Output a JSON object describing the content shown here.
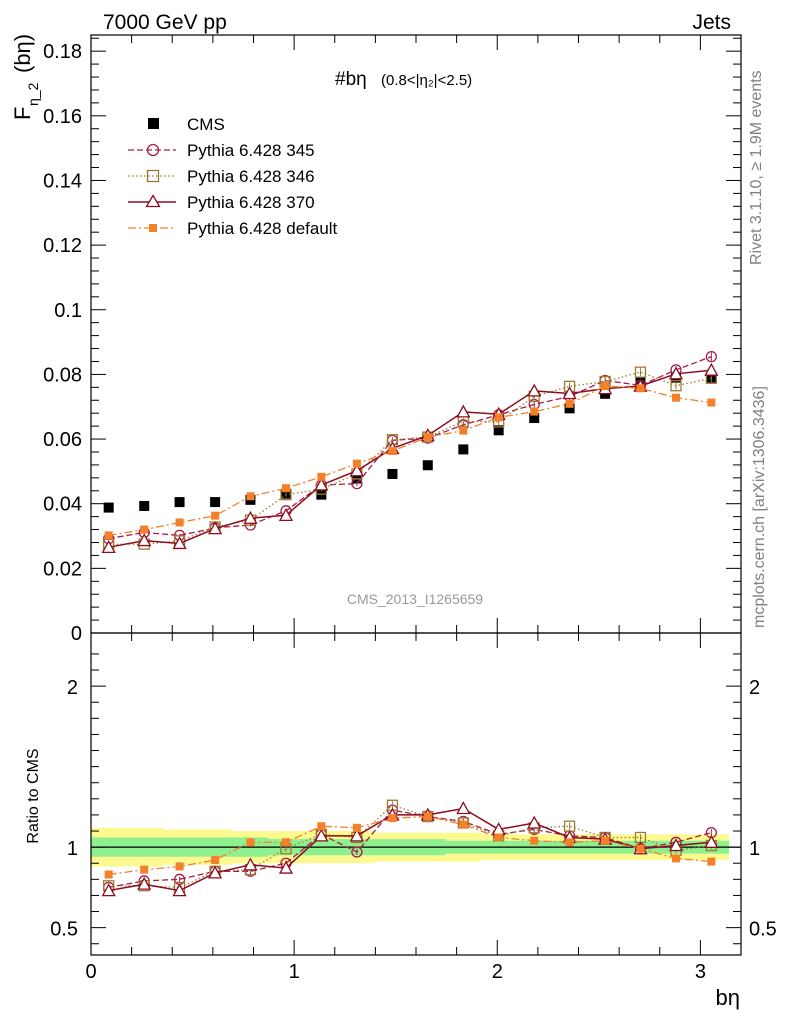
{
  "header": {
    "left": "7000 GeV pp",
    "right": "Jets"
  },
  "side_text": {
    "rivet": "Rivet 3.1.10, ≥ 1.9M events",
    "mcplots": "mcplots.cern.ch [arXiv:1306.3436]"
  },
  "colors": {
    "cms": "#000000",
    "p345": "#a51d4a",
    "p346": "#9b7b2f",
    "p370": "#8b0d1f",
    "pdef": "#f5802a",
    "band_outer": "#fbf98f",
    "band_inner": "#8ff08f"
  },
  "chart_data": {
    "type": "scatter",
    "title": "#bη",
    "title_sub": "(0.8<|η₂|<2.5)",
    "watermark": "CMS_2013_I1265659",
    "xlabel": "bη",
    "ylabel": "Fη_2(bη)",
    "ylabel_main": "F",
    "ylabel_sub": "η_2",
    "ylabel_tail": "(bη)",
    "xlim": [
      0,
      3.2
    ],
    "ylim": [
      0,
      0.185
    ],
    "xticks": [
      0,
      1,
      2,
      3
    ],
    "xtick_labels": [
      "0",
      "1",
      "2",
      "3"
    ],
    "yticks": [
      0,
      0.02,
      0.04,
      0.06,
      0.08,
      0.1,
      0.12,
      0.14,
      0.16,
      0.18
    ],
    "ytick_labels": [
      "0",
      "0.02",
      "0.04",
      "0.06",
      "0.08",
      "0.1",
      "0.12",
      "0.14",
      "0.16",
      "0.18"
    ],
    "x": [
      0.087,
      0.262,
      0.436,
      0.611,
      0.785,
      0.96,
      1.134,
      1.309,
      1.484,
      1.658,
      1.833,
      2.007,
      2.182,
      2.356,
      2.531,
      2.705,
      2.88,
      3.054
    ],
    "series": [
      {
        "name": "CMS",
        "style": "cms",
        "values": [
          0.0388,
          0.0393,
          0.0405,
          0.0405,
          0.0412,
          0.0431,
          0.0428,
          0.0478,
          0.0492,
          0.0519,
          0.0568,
          0.0627,
          0.0665,
          0.0695,
          0.074,
          0.0776,
          0.079,
          0.079
        ]
      },
      {
        "name": "Pythia 6.428 345",
        "style": "p345",
        "values": [
          0.0292,
          0.0311,
          0.0302,
          0.0325,
          0.0334,
          0.0378,
          0.0458,
          0.0462,
          0.0596,
          0.0603,
          0.0644,
          0.0675,
          0.0707,
          0.0732,
          0.0781,
          0.0766,
          0.0814,
          0.0855
        ]
      },
      {
        "name": "Pythia 6.428 346",
        "style": "p346",
        "values": [
          0.0274,
          0.0275,
          0.0285,
          0.0328,
          0.0349,
          0.0428,
          0.0445,
          0.0492,
          0.0598,
          0.0606,
          0.0655,
          0.0653,
          0.0732,
          0.0763,
          0.0778,
          0.0807,
          0.0765,
          0.0788
        ]
      },
      {
        "name": "Pythia 6.428 370",
        "style": "p370",
        "values": [
          0.0265,
          0.0286,
          0.0277,
          0.0323,
          0.0355,
          0.0364,
          0.0458,
          0.0502,
          0.0571,
          0.0611,
          0.0684,
          0.0677,
          0.0749,
          0.0741,
          0.0756,
          0.0764,
          0.0802,
          0.0813
        ]
      },
      {
        "name": "Pythia 6.428 default",
        "style": "pdef",
        "values": [
          0.0302,
          0.032,
          0.0342,
          0.0363,
          0.0423,
          0.0448,
          0.0483,
          0.0524,
          0.0563,
          0.0606,
          0.0626,
          0.0667,
          0.0685,
          0.0709,
          0.0764,
          0.0757,
          0.0728,
          0.0713
        ]
      }
    ],
    "ratio": {
      "ylabel": "Ratio to CMS",
      "ylim": [
        0.33,
        2.33
      ],
      "yticks": [
        0.5,
        1,
        2
      ],
      "ytick_labels": [
        "0.5",
        "1",
        "2"
      ],
      "band_outer": [
        0.12,
        0.12,
        0.11,
        0.11,
        0.1,
        0.1,
        0.1,
        0.1,
        0.09,
        0.09,
        0.09,
        0.08,
        0.08,
        0.08,
        0.08,
        0.08,
        0.08,
        0.08
      ],
      "band_inner": [
        0.06,
        0.06,
        0.06,
        0.06,
        0.06,
        0.05,
        0.05,
        0.05,
        0.05,
        0.05,
        0.04,
        0.04,
        0.04,
        0.04,
        0.04,
        0.04,
        0.04,
        0.04
      ],
      "series": [
        {
          "name": "Pythia 6.428 345",
          "style": "p345",
          "values": [
            0.75,
            0.79,
            0.8,
            0.85,
            0.85,
            0.9,
            1.08,
            0.97,
            1.23,
            1.19,
            1.16,
            1.08,
            1.11,
            1.07,
            1.06,
            0.99,
            1.03,
            1.09
          ]
        },
        {
          "name": "Pythia 6.428 346",
          "style": "p346",
          "values": [
            0.76,
            0.76,
            0.75,
            0.85,
            0.86,
            0.99,
            1.08,
            1.06,
            1.26,
            1.19,
            1.15,
            1.07,
            1.12,
            1.13,
            1.06,
            1.06,
            0.98,
            1.01
          ]
        },
        {
          "name": "Pythia 6.428 370",
          "style": "p370",
          "values": [
            0.73,
            0.77,
            0.73,
            0.84,
            0.89,
            0.87,
            1.07,
            1.07,
            1.2,
            1.2,
            1.24,
            1.11,
            1.15,
            1.06,
            1.05,
            0.99,
            1.01,
            1.03
          ]
        },
        {
          "name": "Pythia 6.428 default",
          "style": "pdef",
          "values": [
            0.83,
            0.86,
            0.88,
            0.92,
            1.03,
            1.03,
            1.13,
            1.12,
            1.18,
            1.19,
            1.14,
            1.06,
            1.04,
            1.03,
            1.04,
            0.99,
            0.93,
            0.91
          ]
        }
      ]
    }
  }
}
